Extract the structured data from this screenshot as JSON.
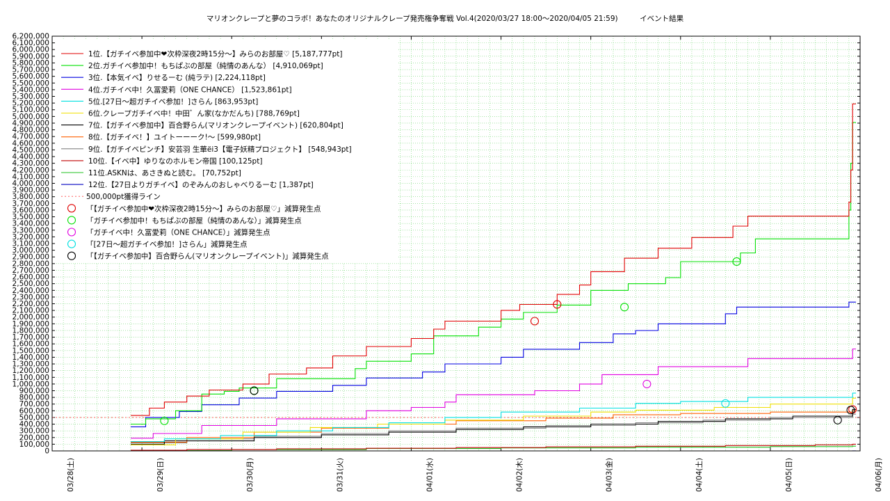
{
  "chart_data": {
    "type": "line",
    "title": "マリオンクレープと夢のコラボ！あなたのオリジナルクレープ発売権争奪戦 Vol.4(2020/03/27 18:00〜2020/04/05 21:59)　　　イベント結果",
    "xlabel": "",
    "ylabel": "",
    "grid": true,
    "legend_position": "top-left",
    "x_ticks": [
      "03/28(土)",
      "03/29(日)",
      "03/30(月)",
      "03/31(火)",
      "04/01(水)",
      "04/02(木)",
      "04/03(金)",
      "04/04(土)",
      "04/05(日)",
      "04/06(月)"
    ],
    "x_range": [
      "2020-03-28 00:00",
      "2020-04-06 00:00"
    ],
    "ylim": [
      0,
      6200000
    ],
    "y_tick_step": 100000,
    "threshold_line": {
      "label": "500,000pt獲得ライン",
      "value": 500000,
      "color": "#ff4444"
    },
    "series": [
      {
        "name": "1位.【ガチイベ参加中❤次枠深夜2時15分〜】みらのお部屋♡ [5,187,777pt]",
        "color": "#e00000",
        "points": [
          [
            "2020-03-28 21:00",
            530000
          ],
          [
            "2020-03-29 02:00",
            640000
          ],
          [
            "2020-03-29 06:00",
            730000
          ],
          [
            "2020-03-29 12:00",
            820000
          ],
          [
            "2020-03-29 18:00",
            910000
          ],
          [
            "2020-03-30 03:00",
            1000000
          ],
          [
            "2020-03-30 10:00",
            1150000
          ],
          [
            "2020-03-30 20:00",
            1240000
          ],
          [
            "2020-03-31 03:00",
            1420000
          ],
          [
            "2020-03-31 12:00",
            1560000
          ],
          [
            "2020-04-01 00:00",
            1680000
          ],
          [
            "2020-04-01 06:00",
            1820000
          ],
          [
            "2020-04-01 09:00",
            1940000
          ],
          [
            "2020-04-02 00:00",
            2100000
          ],
          [
            "2020-04-02 05:00",
            2190000
          ],
          [
            "2020-04-02 15:00",
            2340000
          ],
          [
            "2020-04-02 21:00",
            2480000
          ],
          [
            "2020-04-03 00:00",
            2680000
          ],
          [
            "2020-04-03 09:00",
            2880000
          ],
          [
            "2020-04-03 18:00",
            3030000
          ],
          [
            "2020-04-04 03:00",
            3190000
          ],
          [
            "2020-04-04 14:00",
            3360000
          ],
          [
            "2020-04-04 18:00",
            3510000
          ],
          [
            "2020-04-05 21:00",
            3720000
          ],
          [
            "2020-04-05 21:30",
            4200000
          ],
          [
            "2020-04-05 21:59",
            5187777
          ]
        ]
      },
      {
        "name": "2位.ガチイベ参加中！もちぱぶの部屋（純情のあんな） [4,910,069pt]",
        "color": "#00e000",
        "points": [
          [
            "2020-03-28 21:00",
            400000
          ],
          [
            "2020-03-29 01:00",
            480000
          ],
          [
            "2020-03-29 09:00",
            600000
          ],
          [
            "2020-03-29 16:00",
            850000
          ],
          [
            "2020-03-29 22:00",
            890000
          ],
          [
            "2020-03-30 02:00",
            940000
          ],
          [
            "2020-03-30 12:00",
            1080000
          ],
          [
            "2020-03-31 09:00",
            1230000
          ],
          [
            "2020-03-31 12:00",
            1340000
          ],
          [
            "2020-04-01 00:00",
            1450000
          ],
          [
            "2020-04-01 06:00",
            1720000
          ],
          [
            "2020-04-01 18:00",
            1850000
          ],
          [
            "2020-04-02 00:00",
            1970000
          ],
          [
            "2020-04-02 06:00",
            2070000
          ],
          [
            "2020-04-02 15:00",
            2180000
          ],
          [
            "2020-04-03 00:00",
            2400000
          ],
          [
            "2020-04-03 10:00",
            2500000
          ],
          [
            "2020-04-03 20:00",
            2590000
          ],
          [
            "2020-04-04 00:00",
            2830000
          ],
          [
            "2020-04-04 16:00",
            2960000
          ],
          [
            "2020-04-04 20:00",
            3170000
          ],
          [
            "2020-04-05 21:00",
            3600000
          ],
          [
            "2020-04-05 21:30",
            4300000
          ],
          [
            "2020-04-05 21:59",
            4910069
          ]
        ]
      },
      {
        "name": "3位.【本気イベ】りせるーむ (純ラテ) [2,224,118pt]",
        "color": "#0000e0",
        "points": [
          [
            "2020-03-28 21:00",
            360000
          ],
          [
            "2020-03-29 01:00",
            500000
          ],
          [
            "2020-03-29 10:00",
            590000
          ],
          [
            "2020-03-29 16:00",
            690000
          ],
          [
            "2020-03-30 02:00",
            790000
          ],
          [
            "2020-03-30 12:00",
            890000
          ],
          [
            "2020-03-31 03:00",
            980000
          ],
          [
            "2020-03-31 12:00",
            1090000
          ],
          [
            "2020-04-01 03:00",
            1180000
          ],
          [
            "2020-04-01 09:00",
            1300000
          ],
          [
            "2020-04-02 00:00",
            1400000
          ],
          [
            "2020-04-02 06:00",
            1520000
          ],
          [
            "2020-04-02 21:00",
            1620000
          ],
          [
            "2020-04-03 06:00",
            1750000
          ],
          [
            "2020-04-03 12:00",
            1800000
          ],
          [
            "2020-04-03 18:00",
            1900000
          ],
          [
            "2020-04-04 12:00",
            2050000
          ],
          [
            "2020-04-04 15:00",
            2150000
          ],
          [
            "2020-04-05 21:00",
            2224118
          ]
        ]
      },
      {
        "name": "4位.ガチイベ中！久冨愛莉（ONE CHANCE） [1,523,861pt]",
        "color": "#e000e0",
        "points": [
          [
            "2020-03-28 21:00",
            190000
          ],
          [
            "2020-03-29 03:00",
            260000
          ],
          [
            "2020-03-29 16:00",
            380000
          ],
          [
            "2020-03-30 12:00",
            480000
          ],
          [
            "2020-03-31 12:00",
            600000
          ],
          [
            "2020-04-01 00:00",
            650000
          ],
          [
            "2020-04-01 09:00",
            730000
          ],
          [
            "2020-04-01 12:00",
            840000
          ],
          [
            "2020-04-02 09:00",
            900000
          ],
          [
            "2020-04-02 21:00",
            1000000
          ],
          [
            "2020-04-03 03:00",
            1140000
          ],
          [
            "2020-04-03 18:00",
            1260000
          ],
          [
            "2020-04-04 18:00",
            1380000
          ],
          [
            "2020-04-05 21:59",
            1523861
          ]
        ]
      },
      {
        "name": "5位.[27日〜超ガチイベ参加！]さらん [863,953pt]",
        "color": "#00e0e0",
        "points": [
          [
            "2020-03-28 21:00",
            140000
          ],
          [
            "2020-03-29 06:00",
            180000
          ],
          [
            "2020-03-29 21:00",
            230000
          ],
          [
            "2020-03-30 12:00",
            300000
          ],
          [
            "2020-03-31 03:00",
            350000
          ],
          [
            "2020-03-31 18:00",
            420000
          ],
          [
            "2020-04-01 09:00",
            500000
          ],
          [
            "2020-04-02 00:00",
            580000
          ],
          [
            "2020-04-02 21:00",
            640000
          ],
          [
            "2020-04-03 12:00",
            710000
          ],
          [
            "2020-04-04 00:00",
            740000
          ],
          [
            "2020-04-04 18:00",
            800000
          ],
          [
            "2020-04-05 21:59",
            863953
          ]
        ]
      },
      {
        "name": "6位.クレープガチイベ中！中田゛ん家(なかだんち) [788,769pt]",
        "color": "#f0e000",
        "points": [
          [
            "2020-03-28 21:00",
            90000
          ],
          [
            "2020-03-29 09:00",
            180000
          ],
          [
            "2020-03-30 03:00",
            280000
          ],
          [
            "2020-03-30 21:00",
            350000
          ],
          [
            "2020-03-31 15:00",
            400000
          ],
          [
            "2020-04-01 09:00",
            460000
          ],
          [
            "2020-04-02 06:00",
            520000
          ],
          [
            "2020-04-03 00:00",
            580000
          ],
          [
            "2020-04-03 12:00",
            610000
          ],
          [
            "2020-04-04 09:00",
            650000
          ],
          [
            "2020-04-05 00:00",
            700000
          ],
          [
            "2020-04-05 21:59",
            788769
          ]
        ]
      },
      {
        "name": "7位.【ガチイベ参加中】百合野らん(マリオンクレープイベント) [620,804pt]",
        "color": "#000000",
        "points": [
          [
            "2020-03-28 21:00",
            100000
          ],
          [
            "2020-03-29 06:00",
            150000
          ],
          [
            "2020-03-30 06:00",
            200000
          ],
          [
            "2020-03-31 00:00",
            240000
          ],
          [
            "2020-03-31 18:00",
            280000
          ],
          [
            "2020-04-01 12:00",
            320000
          ],
          [
            "2020-04-02 06:00",
            360000
          ],
          [
            "2020-04-03 00:00",
            400000
          ],
          [
            "2020-04-03 18:00",
            440000
          ],
          [
            "2020-04-04 12:00",
            480000
          ],
          [
            "2020-04-05 06:00",
            520000
          ],
          [
            "2020-04-05 21:59",
            620804
          ]
        ]
      },
      {
        "name": "8位.【ガチイベ！】ユイトーーーク!〜 [599,980pt]",
        "color": "#ff6000",
        "points": [
          [
            "2020-03-28 21:00",
            130000
          ],
          [
            "2020-03-29 12:00",
            200000
          ],
          [
            "2020-03-30 06:00",
            280000
          ],
          [
            "2020-03-31 00:00",
            340000
          ],
          [
            "2020-03-31 18:00",
            400000
          ],
          [
            "2020-04-01 12:00",
            450000
          ],
          [
            "2020-04-02 12:00",
            490000
          ],
          [
            "2020-04-03 06:00",
            540000
          ],
          [
            "2020-04-04 00:00",
            560000
          ],
          [
            "2020-04-05 00:00",
            580000
          ],
          [
            "2020-04-05 21:59",
            599980
          ]
        ]
      },
      {
        "name": "9位.【ガチイベピンチ】安芸羽 生華ёi3【電子妖精プロジェクト】 [548,943pt]",
        "color": "#808080",
        "points": [
          [
            "2020-03-28 21:00",
            120000
          ],
          [
            "2020-03-29 12:00",
            180000
          ],
          [
            "2020-03-30 06:00",
            220000
          ],
          [
            "2020-03-31 00:00",
            260000
          ],
          [
            "2020-03-31 18:00",
            300000
          ],
          [
            "2020-04-01 12:00",
            340000
          ],
          [
            "2020-04-02 12:00",
            380000
          ],
          [
            "2020-04-03 12:00",
            420000
          ],
          [
            "2020-04-04 06:00",
            460000
          ],
          [
            "2020-04-05 00:00",
            500000
          ],
          [
            "2020-04-05 21:59",
            548943
          ]
        ]
      },
      {
        "name": "10位.【イベ中】ゆりなのホルモン帝国 [100,125pt]",
        "color": "#c00000",
        "points": [
          [
            "2020-03-28 21:00",
            10000
          ],
          [
            "2020-03-29 12:00",
            20000
          ],
          [
            "2020-03-30 12:00",
            30000
          ],
          [
            "2020-03-31 12:00",
            40000
          ],
          [
            "2020-04-01 12:00",
            50000
          ],
          [
            "2020-04-02 12:00",
            60000
          ],
          [
            "2020-04-03 12:00",
            70000
          ],
          [
            "2020-04-04 12:00",
            80000
          ],
          [
            "2020-04-05 12:00",
            90000
          ],
          [
            "2020-04-05 21:59",
            100125
          ]
        ]
      },
      {
        "name": "11位.ASKNは、あさきぬと読む。 [70,752pt]",
        "color": "#20c020",
        "points": [
          [
            "2020-03-28 21:00",
            5000
          ],
          [
            "2020-03-30 00:00",
            20000
          ],
          [
            "2020-03-31 12:00",
            35000
          ],
          [
            "2020-04-02 00:00",
            45000
          ],
          [
            "2020-04-03 12:00",
            55000
          ],
          [
            "2020-04-05 00:00",
            65000
          ],
          [
            "2020-04-05 21:59",
            70752
          ]
        ]
      },
      {
        "name": "12位.【27日よりガチイベ】のぞみんのおしゃべりるーむ [1,387pt]",
        "color": "#0000c0",
        "points": [
          [
            "2020-03-28 21:00",
            0
          ],
          [
            "2020-04-05 21:59",
            1387
          ]
        ]
      }
    ],
    "markers": [
      {
        "name": "「【ガチイベ参加中❤次枠深夜2時15分〜】みらのお部屋♡」減算発生点",
        "color": "#e00000",
        "points": [
          [
            "2020-04-02 09:00",
            1940000
          ],
          [
            "2020-04-02 15:00",
            2190000
          ],
          [
            "2020-04-05 21:59",
            620000
          ]
        ]
      },
      {
        "name": "「ガチイベ参加中！もちぱぶの部屋（純情のあんな）」減算発生点",
        "color": "#00e000",
        "points": [
          [
            "2020-03-29 06:00",
            450000
          ],
          [
            "2020-03-30 06:00",
            900000
          ],
          [
            "2020-04-03 09:00",
            2150000
          ],
          [
            "2020-04-04 15:00",
            2830000
          ]
        ]
      },
      {
        "name": "「ガチイベ中！久冨愛莉（ONE CHANCE）」減算発生点",
        "color": "#e000e0",
        "points": [
          [
            "2020-04-03 15:00",
            1000000
          ]
        ]
      },
      {
        "name": "「[27日〜超ガチイベ参加！]さらん」減算発生点",
        "color": "#00e0e0",
        "points": [
          [
            "2020-04-04 12:00",
            710000
          ]
        ]
      },
      {
        "name": "「【ガチイベ参加中】百合野らん(マリオンクレープイベント)」減算発生点",
        "color": "#000000",
        "points": [
          [
            "2020-03-30 06:00",
            900000
          ],
          [
            "2020-04-05 18:00",
            460000
          ],
          [
            "2020-04-05 21:30",
            610000
          ]
        ]
      }
    ]
  }
}
